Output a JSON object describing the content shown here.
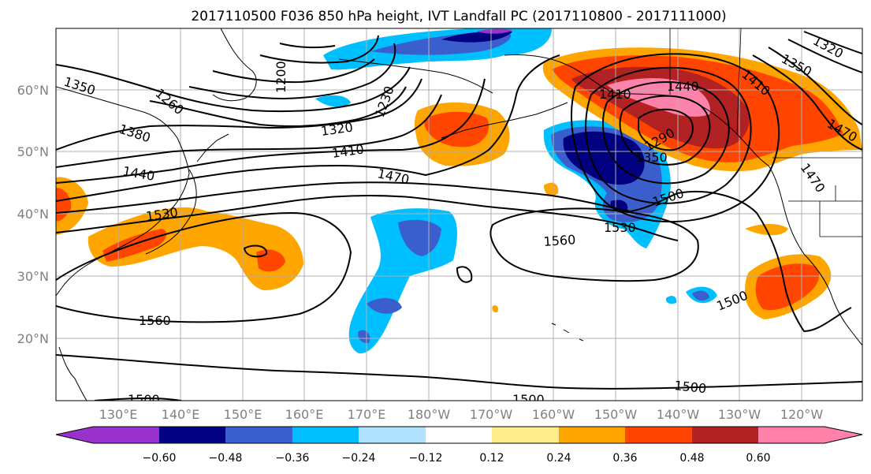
{
  "title": "2017110500 F036 850 hPa height, IVT Landfall PC (2017110800 - 2017111000)",
  "map": {
    "lon_ticks": [
      "130°E",
      "140°E",
      "150°E",
      "160°E",
      "170°E",
      "180°W",
      "170°W",
      "160°W",
      "150°W",
      "140°W",
      "130°W",
      "120°W"
    ],
    "lat_ticks": [
      "60°N",
      "50°N",
      "40°N",
      "30°N",
      "20°N"
    ],
    "tick_color": "#808080",
    "contour_labels": [
      "1350",
      "1380",
      "1440",
      "1530",
      "1560",
      "1500",
      "1260",
      "1200",
      "1230",
      "1320",
      "1410",
      "1470",
      "1500",
      "1530",
      "1560",
      "1500",
      "1320",
      "1350",
      "1410",
      "1470",
      "1470",
      "1440",
      "1410",
      "1290",
      "1350",
      "1500",
      "1500"
    ]
  },
  "colorbar": {
    "ticks": [
      "−0.60",
      "−0.48",
      "−0.36",
      "−0.24",
      "−0.12",
      "0.12",
      "0.24",
      "0.36",
      "0.48",
      "0.60"
    ],
    "colors": [
      "#9932cc",
      "#000080",
      "#3a5fcd",
      "#00bfff",
      "#b0e2ff",
      "#ffffff",
      "#ffec8b",
      "#ffa500",
      "#ff4500",
      "#b22222",
      "#ff82ab"
    ]
  }
}
